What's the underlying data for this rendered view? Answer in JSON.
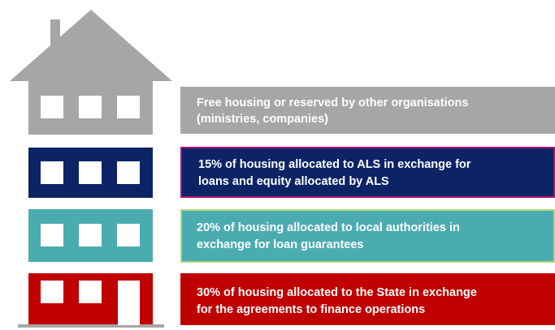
{
  "floors": [
    {
      "lines": [
        "Free housing or reserved by other organisations",
        "(ministries, companies)"
      ]
    },
    {
      "lines": [
        "15% of housing allocated to ALS in exchange for",
        "loans and equity allocated by ALS"
      ]
    },
    {
      "lines": [
        "20% of housing allocated to local authorities in",
        "exchange for loan guarantees"
      ]
    },
    {
      "lines": [
        "30% of housing allocated to the State in exchange",
        "for the agreements to finance operations"
      ]
    }
  ]
}
